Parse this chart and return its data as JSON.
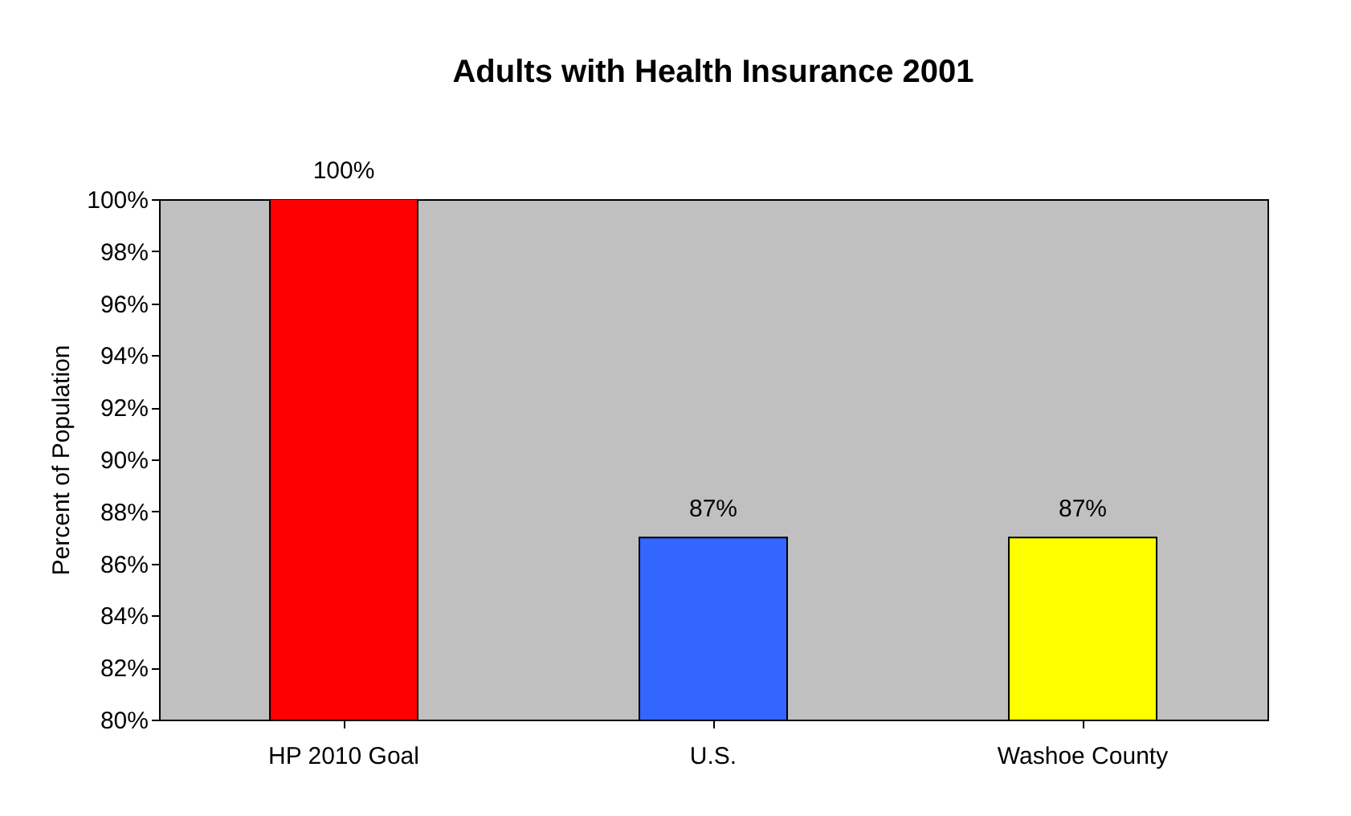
{
  "chart_data": {
    "type": "bar",
    "title": "Adults with Health Insurance 2001",
    "ylabel": "Percent of Population",
    "categories": [
      "HP 2010 Goal",
      "U.S.",
      "Washoe County"
    ],
    "values": [
      100,
      87,
      87
    ],
    "colors": [
      "#ff0000",
      "#3366ff",
      "#ffff00"
    ],
    "value_labels": [
      "100%",
      "87%",
      "87%"
    ],
    "ylim": [
      80,
      100
    ],
    "yticks": [
      {
        "value": 80,
        "label": "80%"
      },
      {
        "value": 82,
        "label": "82%"
      },
      {
        "value": 84,
        "label": "84%"
      },
      {
        "value": 86,
        "label": "86%"
      },
      {
        "value": 88,
        "label": "88%"
      },
      {
        "value": 90,
        "label": "90%"
      },
      {
        "value": 92,
        "label": "92%"
      },
      {
        "value": 94,
        "label": "94%"
      },
      {
        "value": 96,
        "label": "96%"
      },
      {
        "value": 98,
        "label": "98%"
      },
      {
        "value": 100,
        "label": "100%"
      }
    ],
    "grid": false
  }
}
